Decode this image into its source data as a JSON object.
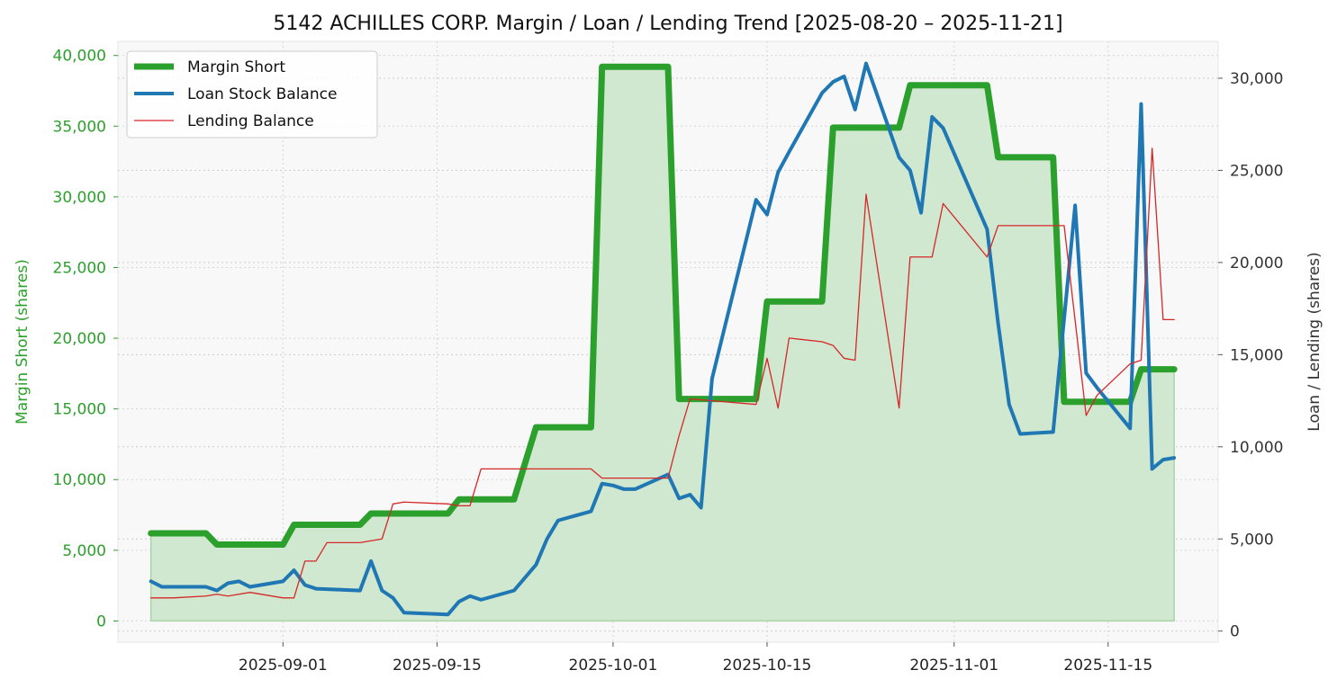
{
  "chart_data": {
    "type": "line",
    "title": "5142 ACHILLES CORP. Margin / Loan / Lending Trend [2025-08-20 – 2025-11-21]",
    "xlabel": "",
    "ylabel_left": "Margin Short (shares)",
    "ylabel_right": "Loan / Lending (shares)",
    "xlim": [
      "2025-08-17",
      "2025-11-25"
    ],
    "ylim_left": [
      -1500,
      41000
    ],
    "ylim_right": [
      -600,
      32000
    ],
    "x_ticks": [
      "2025-09-01",
      "2025-09-15",
      "2025-10-01",
      "2025-10-15",
      "2025-11-01",
      "2025-11-15"
    ],
    "y_ticks_left": [
      0,
      5000,
      10000,
      15000,
      20000,
      25000,
      30000,
      35000,
      40000
    ],
    "y_ticks_right": [
      0,
      5000,
      10000,
      15000,
      20000,
      25000,
      30000
    ],
    "y_tick_labels_left": [
      "0",
      "5,000",
      "10,000",
      "15,000",
      "20,000",
      "25,000",
      "30,000",
      "35,000",
      "40,000"
    ],
    "y_tick_labels_right": [
      "0",
      "5,000",
      "10,000",
      "15,000",
      "20,000",
      "25,000",
      "30,000"
    ],
    "grid": true,
    "legend_position": "top-left",
    "colors": {
      "margin": "#2ca02c",
      "margin_fill": "#d0e8cf",
      "loan": "#1f77b4",
      "lending": "#d62728",
      "left_axis": "#2ca02c",
      "right_axis": "#333333",
      "background": "#f8f8f8"
    },
    "series": [
      {
        "name": "Margin Short",
        "axis": "left",
        "points": [
          [
            "2025-08-20",
            6200
          ],
          [
            "2025-08-25",
            6200
          ],
          [
            "2025-08-26",
            5400
          ],
          [
            "2025-09-01",
            5400
          ],
          [
            "2025-09-02",
            6800
          ],
          [
            "2025-09-08",
            6800
          ],
          [
            "2025-09-09",
            7600
          ],
          [
            "2025-09-16",
            7600
          ],
          [
            "2025-09-17",
            8600
          ],
          [
            "2025-09-22",
            8600
          ],
          [
            "2025-09-24",
            13700
          ],
          [
            "2025-09-29",
            13700
          ],
          [
            "2025-09-30",
            39200
          ],
          [
            "2025-10-06",
            39200
          ],
          [
            "2025-10-07",
            15700
          ],
          [
            "2025-10-14",
            15700
          ],
          [
            "2025-10-15",
            22600
          ],
          [
            "2025-10-20",
            22600
          ],
          [
            "2025-10-21",
            34900
          ],
          [
            "2025-10-27",
            34900
          ],
          [
            "2025-10-28",
            37900
          ],
          [
            "2025-11-04",
            37900
          ],
          [
            "2025-11-05",
            32800
          ],
          [
            "2025-11-10",
            32800
          ],
          [
            "2025-11-11",
            15500
          ],
          [
            "2025-11-17",
            15500
          ],
          [
            "2025-11-18",
            17800
          ],
          [
            "2025-11-21",
            17800
          ]
        ]
      },
      {
        "name": "Loan Stock Balance",
        "axis": "right",
        "points": [
          [
            "2025-08-20",
            2700
          ],
          [
            "2025-08-21",
            2400
          ],
          [
            "2025-08-25",
            2400
          ],
          [
            "2025-08-26",
            2200
          ],
          [
            "2025-08-27",
            2600
          ],
          [
            "2025-08-28",
            2700
          ],
          [
            "2025-08-29",
            2400
          ],
          [
            "2025-09-01",
            2700
          ],
          [
            "2025-09-02",
            3300
          ],
          [
            "2025-09-03",
            2500
          ],
          [
            "2025-09-04",
            2300
          ],
          [
            "2025-09-08",
            2200
          ],
          [
            "2025-09-09",
            3800
          ],
          [
            "2025-09-10",
            2200
          ],
          [
            "2025-09-11",
            1800
          ],
          [
            "2025-09-12",
            1000
          ],
          [
            "2025-09-16",
            900
          ],
          [
            "2025-09-17",
            1600
          ],
          [
            "2025-09-18",
            1900
          ],
          [
            "2025-09-19",
            1700
          ],
          [
            "2025-09-22",
            2200
          ],
          [
            "2025-09-24",
            3600
          ],
          [
            "2025-09-25",
            5000
          ],
          [
            "2025-09-26",
            6000
          ],
          [
            "2025-09-29",
            6500
          ],
          [
            "2025-09-30",
            8000
          ],
          [
            "2025-10-01",
            7900
          ],
          [
            "2025-10-02",
            7700
          ],
          [
            "2025-10-03",
            7700
          ],
          [
            "2025-10-06",
            8500
          ],
          [
            "2025-10-07",
            7200
          ],
          [
            "2025-10-08",
            7400
          ],
          [
            "2025-10-09",
            6700
          ],
          [
            "2025-10-10",
            13700
          ],
          [
            "2025-10-14",
            23400
          ],
          [
            "2025-10-15",
            22600
          ],
          [
            "2025-10-16",
            24900
          ],
          [
            "2025-10-17",
            26000
          ],
          [
            "2025-10-20",
            29200
          ],
          [
            "2025-10-21",
            29800
          ],
          [
            "2025-10-22",
            30100
          ],
          [
            "2025-10-23",
            28300
          ],
          [
            "2025-10-24",
            30800
          ],
          [
            "2025-10-27",
            25700
          ],
          [
            "2025-10-28",
            25000
          ],
          [
            "2025-10-29",
            22700
          ],
          [
            "2025-10-30",
            27900
          ],
          [
            "2025-10-31",
            27300
          ],
          [
            "2025-11-04",
            21800
          ],
          [
            "2025-11-05",
            16700
          ],
          [
            "2025-11-06",
            12300
          ],
          [
            "2025-11-07",
            10700
          ],
          [
            "2025-11-10",
            10800
          ],
          [
            "2025-11-12",
            23100
          ],
          [
            "2025-11-13",
            14000
          ],
          [
            "2025-11-14",
            13200
          ],
          [
            "2025-11-17",
            11000
          ],
          [
            "2025-11-18",
            28600
          ],
          [
            "2025-11-19",
            8800
          ],
          [
            "2025-11-20",
            9300
          ],
          [
            "2025-11-21",
            9400
          ]
        ]
      },
      {
        "name": "Lending Balance",
        "axis": "right",
        "points": [
          [
            "2025-08-20",
            1800
          ],
          [
            "2025-08-22",
            1800
          ],
          [
            "2025-08-25",
            1900
          ],
          [
            "2025-08-26",
            2000
          ],
          [
            "2025-08-27",
            1900
          ],
          [
            "2025-08-29",
            2100
          ],
          [
            "2025-09-01",
            1800
          ],
          [
            "2025-09-02",
            1800
          ],
          [
            "2025-09-03",
            3800
          ],
          [
            "2025-09-04",
            3800
          ],
          [
            "2025-09-05",
            4800
          ],
          [
            "2025-09-08",
            4800
          ],
          [
            "2025-09-10",
            5000
          ],
          [
            "2025-09-11",
            6900
          ],
          [
            "2025-09-12",
            7000
          ],
          [
            "2025-09-16",
            6900
          ],
          [
            "2025-09-17",
            6800
          ],
          [
            "2025-09-18",
            6800
          ],
          [
            "2025-09-19",
            8800
          ],
          [
            "2025-09-29",
            8800
          ],
          [
            "2025-09-30",
            8300
          ],
          [
            "2025-10-06",
            8300
          ],
          [
            "2025-10-07",
            10600
          ],
          [
            "2025-10-08",
            12600
          ],
          [
            "2025-10-14",
            12300
          ],
          [
            "2025-10-15",
            14800
          ],
          [
            "2025-10-16",
            12100
          ],
          [
            "2025-10-17",
            15900
          ],
          [
            "2025-10-20",
            15700
          ],
          [
            "2025-10-21",
            15500
          ],
          [
            "2025-10-22",
            14800
          ],
          [
            "2025-10-23",
            14700
          ],
          [
            "2025-10-24",
            23700
          ],
          [
            "2025-10-27",
            12100
          ],
          [
            "2025-10-28",
            20300
          ],
          [
            "2025-10-30",
            20300
          ],
          [
            "2025-10-31",
            23200
          ],
          [
            "2025-11-04",
            20300
          ],
          [
            "2025-11-05",
            22000
          ],
          [
            "2025-11-11",
            22000
          ],
          [
            "2025-11-13",
            11700
          ],
          [
            "2025-11-14",
            12800
          ],
          [
            "2025-11-17",
            14500
          ],
          [
            "2025-11-18",
            14700
          ],
          [
            "2025-11-19",
            26200
          ],
          [
            "2025-11-20",
            16900
          ],
          [
            "2025-11-21",
            16900
          ]
        ]
      }
    ]
  }
}
